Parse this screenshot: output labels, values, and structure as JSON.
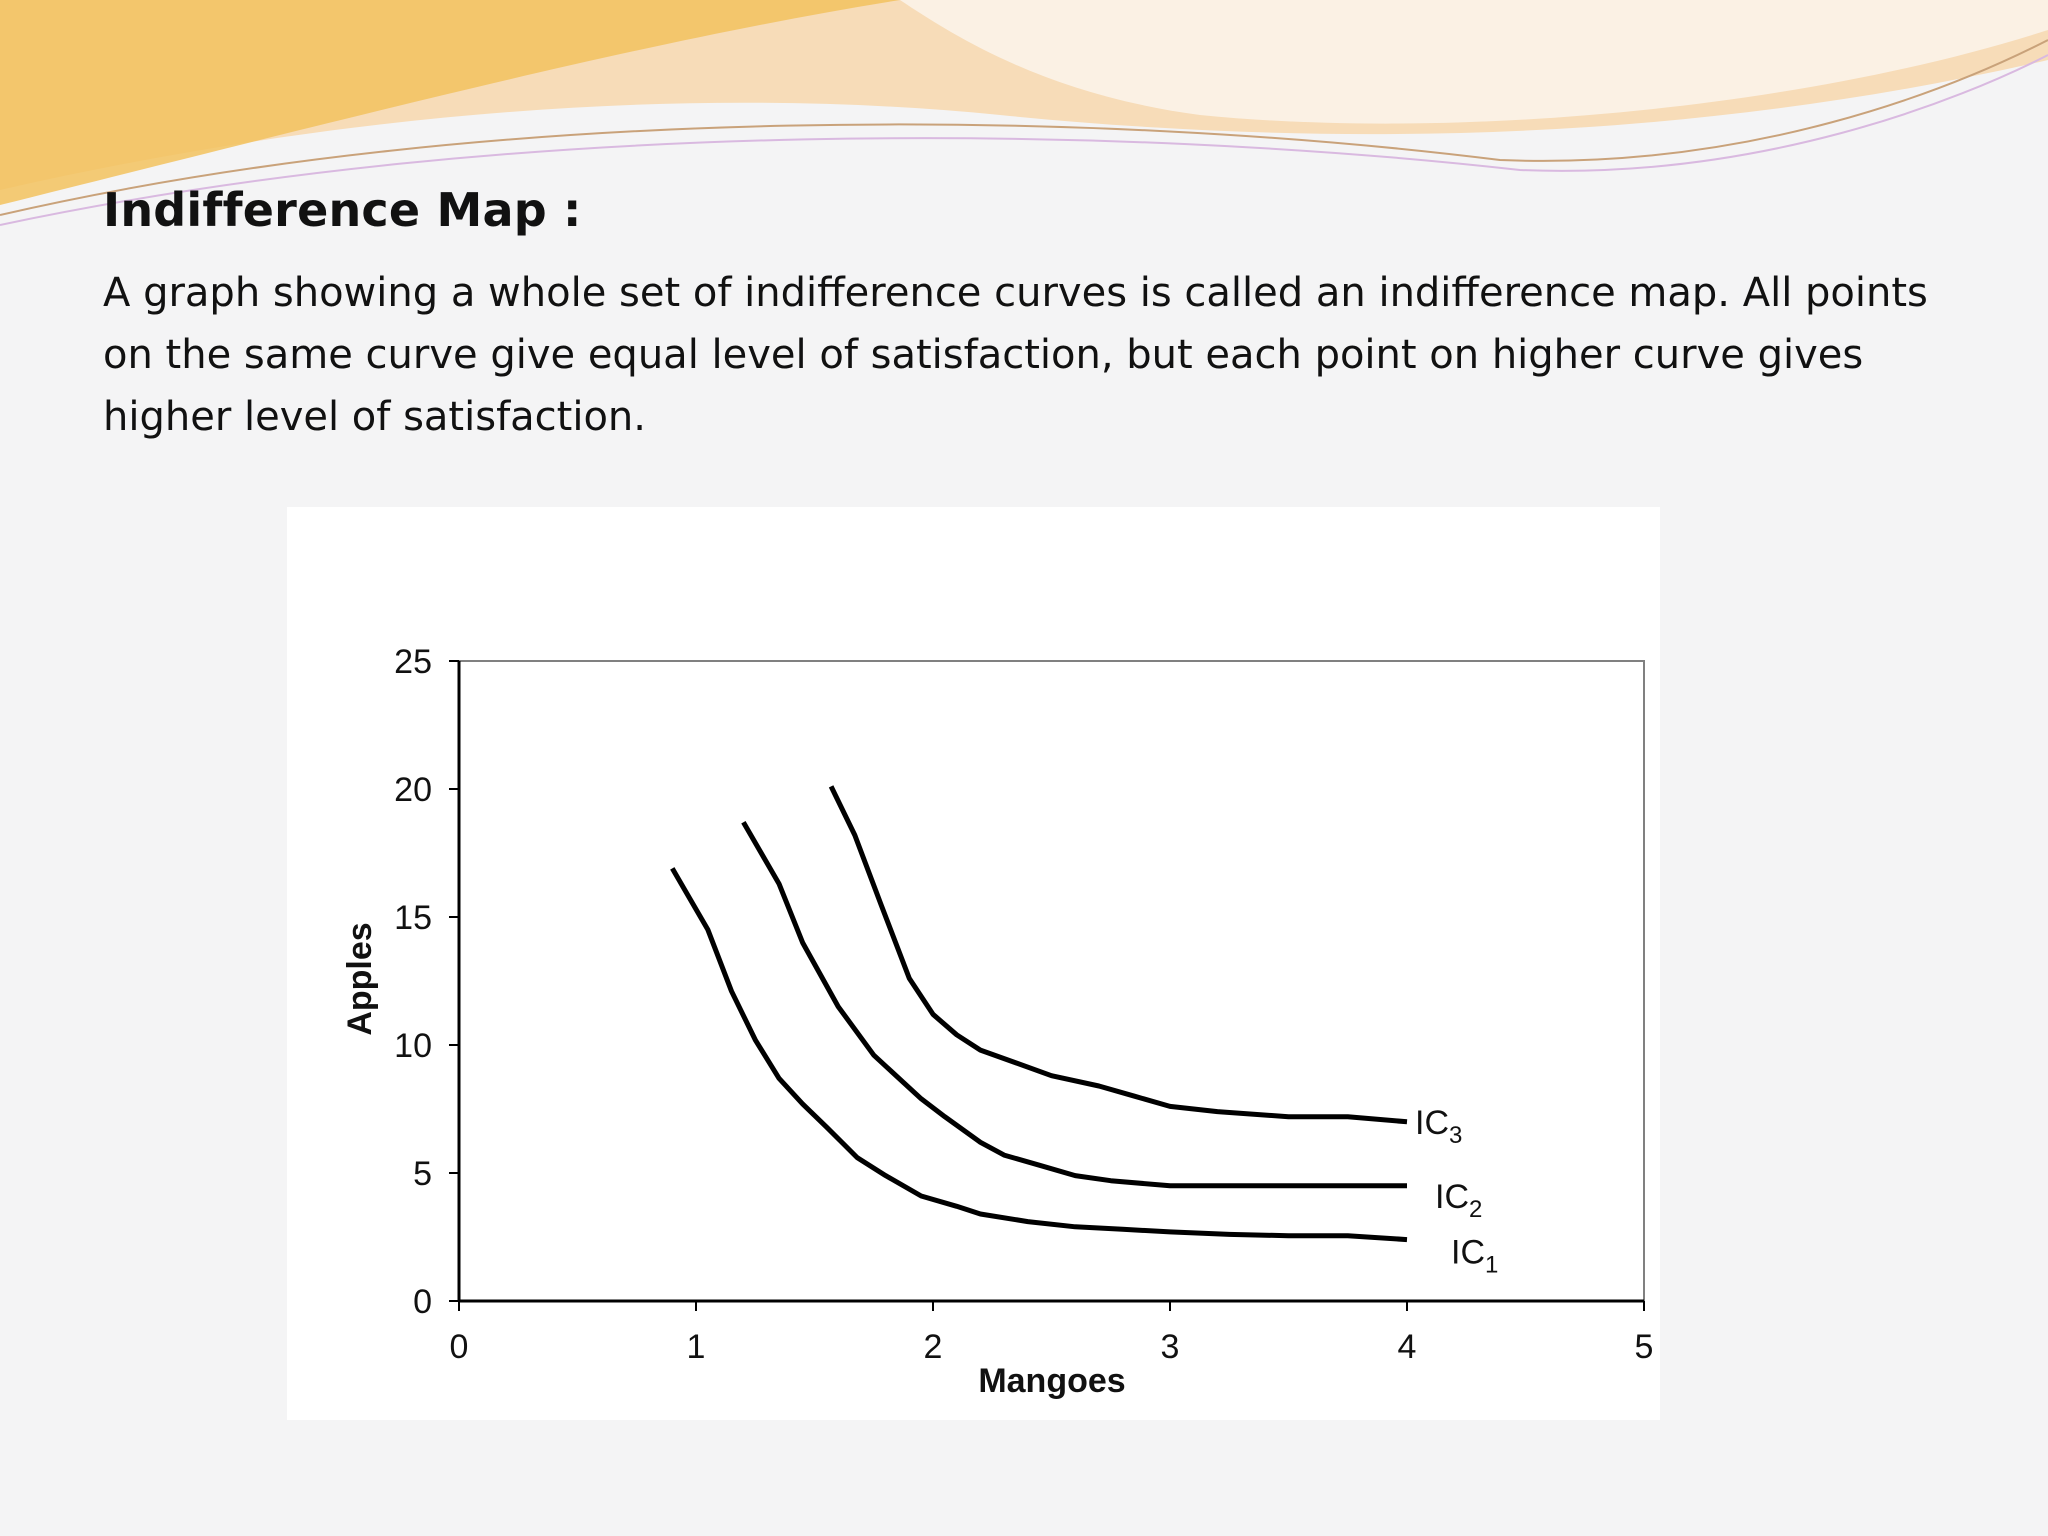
{
  "slide": {
    "title": "Indifference Map :",
    "body": "A graph showing a whole set of indifference curves is called an indifference map. All points on the same curve give equal level of satisfaction, but each point on higher curve gives higher level of satisfaction."
  },
  "colors": {
    "accent_gold": "#f2c25e",
    "accent_peach": "#f7dcb8",
    "curve": "#000000",
    "axis": "#000000",
    "frame": "#808080"
  },
  "chart_data": {
    "type": "line",
    "xlabel": "Mangoes",
    "ylabel": "Apples",
    "xlim": [
      0,
      5
    ],
    "ylim": [
      0,
      25
    ],
    "xticks": [
      "0",
      "1",
      "2",
      "3",
      "4",
      "5"
    ],
    "yticks": [
      "0",
      "5",
      "10",
      "15",
      "20",
      "25"
    ],
    "grid": false,
    "legend": "none",
    "series": [
      {
        "name": "IC1",
        "label_main": "IC",
        "label_sub": "1",
        "points": [
          [
            0.9,
            16.9
          ],
          [
            1.05,
            14.5
          ],
          [
            1.15,
            12.1
          ],
          [
            1.25,
            10.2
          ],
          [
            1.35,
            8.7
          ],
          [
            1.45,
            7.7
          ],
          [
            1.55,
            6.8
          ],
          [
            1.68,
            5.6
          ],
          [
            1.8,
            4.9
          ],
          [
            1.95,
            4.1
          ],
          [
            2.1,
            3.7
          ],
          [
            2.2,
            3.4
          ],
          [
            2.4,
            3.1
          ],
          [
            2.6,
            2.9
          ],
          [
            2.8,
            2.8
          ],
          [
            3.0,
            2.7
          ],
          [
            3.25,
            2.6
          ],
          [
            3.5,
            2.55
          ],
          [
            3.75,
            2.55
          ],
          [
            4.0,
            2.4
          ]
        ]
      },
      {
        "name": "IC2",
        "label_main": "IC",
        "label_sub": "2",
        "points": [
          [
            1.2,
            18.7
          ],
          [
            1.35,
            16.3
          ],
          [
            1.45,
            14.0
          ],
          [
            1.6,
            11.5
          ],
          [
            1.75,
            9.6
          ],
          [
            1.95,
            7.9
          ],
          [
            2.05,
            7.2
          ],
          [
            2.2,
            6.2
          ],
          [
            2.3,
            5.7
          ],
          [
            2.45,
            5.3
          ],
          [
            2.6,
            4.9
          ],
          [
            2.75,
            4.7
          ],
          [
            3.0,
            4.5
          ],
          [
            3.25,
            4.5
          ],
          [
            3.5,
            4.5
          ],
          [
            4.0,
            4.5
          ]
        ]
      },
      {
        "name": "IC3",
        "label_main": "IC",
        "label_sub": "3",
        "points": [
          [
            1.57,
            20.1
          ],
          [
            1.67,
            18.2
          ],
          [
            1.78,
            15.5
          ],
          [
            1.9,
            12.6
          ],
          [
            2.0,
            11.2
          ],
          [
            2.1,
            10.4
          ],
          [
            2.2,
            9.8
          ],
          [
            2.35,
            9.3
          ],
          [
            2.5,
            8.8
          ],
          [
            2.7,
            8.4
          ],
          [
            2.85,
            8.0
          ],
          [
            3.0,
            7.6
          ],
          [
            3.2,
            7.4
          ],
          [
            3.5,
            7.2
          ],
          [
            3.75,
            7.2
          ],
          [
            4.0,
            7.0
          ]
        ]
      }
    ]
  }
}
